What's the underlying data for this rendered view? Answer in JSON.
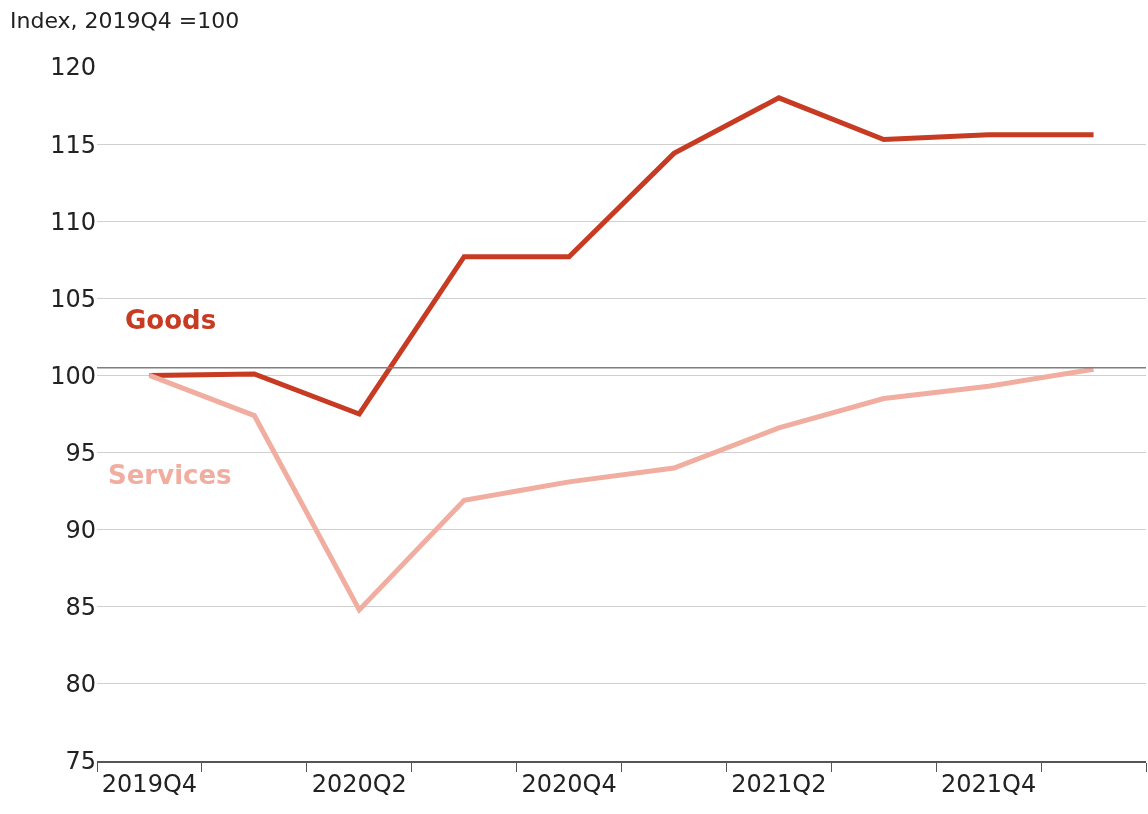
{
  "chart_data": {
    "type": "line",
    "ylabel": "Index, 2019Q4 =100",
    "categories": [
      "2019Q4",
      null,
      "2020Q2",
      null,
      "2020Q4",
      null,
      "2021Q2",
      null,
      "2021Q4",
      null
    ],
    "series": [
      {
        "name": "Goods",
        "color": "#c63b22",
        "values": [
          100,
          100.1,
          97.5,
          107.7,
          107.7,
          114.4,
          118,
          115.3,
          115.6,
          115.6
        ]
      },
      {
        "name": "Services",
        "color": "#f0ada0",
        "values": [
          100,
          97.4,
          84.8,
          91.9,
          93.1,
          94,
          96.6,
          98.5,
          99.3,
          100.4
        ]
      }
    ],
    "ylim": [
      75,
      120
    ],
    "yticks": [
      75,
      80,
      85,
      90,
      95,
      100,
      105,
      110,
      115,
      120
    ],
    "ref_lines": [
      {
        "axis": "y",
        "value": 100.5,
        "color": "#7f7f7f"
      }
    ],
    "grid": "y",
    "legend": false,
    "marker": "none",
    "line_style": "solid"
  }
}
